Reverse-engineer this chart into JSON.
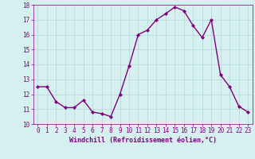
{
  "x": [
    0,
    1,
    2,
    3,
    4,
    5,
    6,
    7,
    8,
    9,
    10,
    11,
    12,
    13,
    14,
    15,
    16,
    17,
    18,
    19,
    20,
    21,
    22,
    23
  ],
  "y": [
    12.5,
    12.5,
    11.5,
    11.1,
    11.1,
    11.6,
    10.8,
    10.7,
    10.5,
    12.0,
    13.9,
    16.0,
    16.3,
    17.0,
    17.4,
    17.85,
    17.6,
    16.6,
    15.8,
    17.0,
    13.3,
    12.5,
    11.2,
    10.8
  ],
  "line_color": "#800080",
  "marker": "D",
  "marker_size": 2.0,
  "bg_color": "#d6f0f0",
  "grid_color": "#b0d8d8",
  "xlabel": "Windchill (Refroidissement éolien,°C)",
  "xlabel_color": "#800080",
  "tick_color": "#800080",
  "ylim": [
    10,
    18
  ],
  "xlim": [
    -0.5,
    23.5
  ],
  "yticks": [
    10,
    11,
    12,
    13,
    14,
    15,
    16,
    17,
    18
  ],
  "xticks": [
    0,
    1,
    2,
    3,
    4,
    5,
    6,
    7,
    8,
    9,
    10,
    11,
    12,
    13,
    14,
    15,
    16,
    17,
    18,
    19,
    20,
    21,
    22,
    23
  ],
  "tick_fontsize": 5.5,
  "xlabel_fontsize": 6.0,
  "linewidth": 1.0
}
